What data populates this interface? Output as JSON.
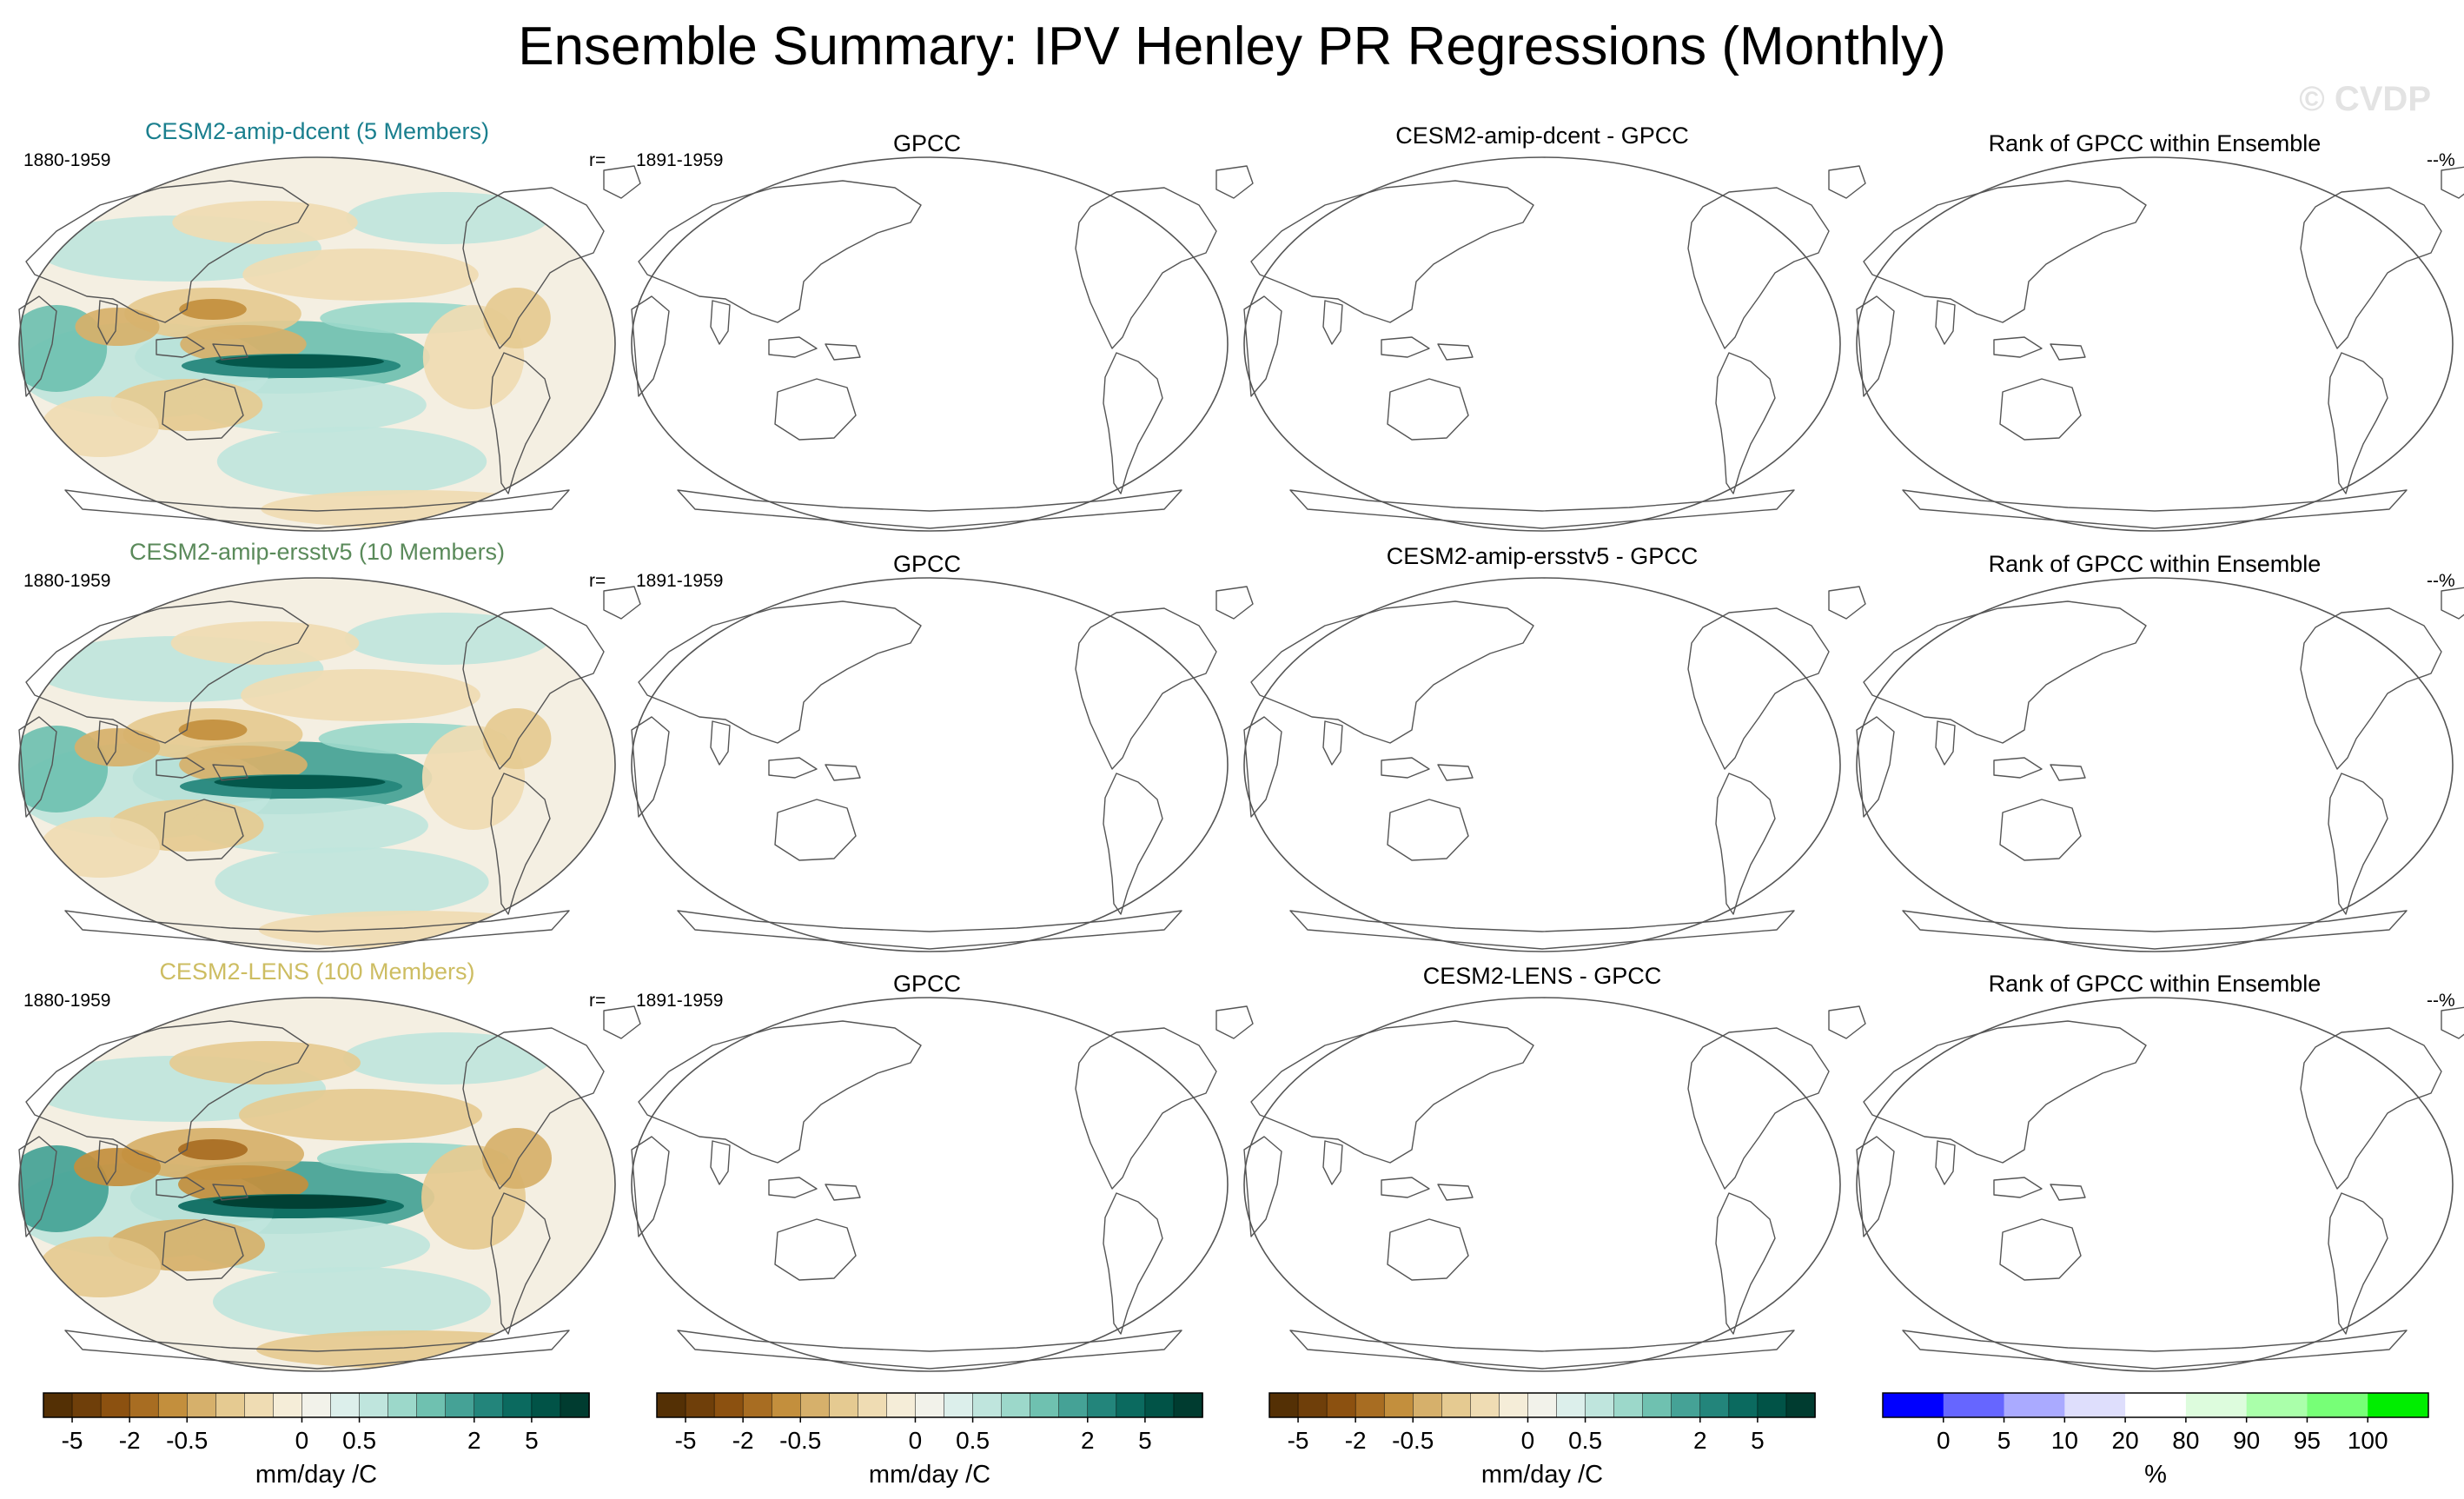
{
  "figure": {
    "title": "Ensemble Summary: IPV Henley PR Regressions (Monthly)",
    "watermark": "© CVDP"
  },
  "colors": {
    "brbg": [
      "#543005",
      "#6f3f0a",
      "#8c5110",
      "#a86d22",
      "#c38f3d",
      "#d6b06b",
      "#e5ca91",
      "#efdcb3",
      "#f5edd8",
      "#f2f2ea",
      "#dcefeb",
      "#bfe5dd",
      "#9cd8ca",
      "#6fc1b0",
      "#45a296",
      "#23857b",
      "#0b6a5f",
      "#015347",
      "#003c30"
    ],
    "rank": [
      "#0000ff",
      "#6666ff",
      "#aaaaff",
      "#dedefc",
      "#ffffff",
      "#ddfcdd",
      "#aaffaa",
      "#77ff77",
      "#00ee00"
    ],
    "ensemble_title_colors": [
      "#1a7f8e",
      "#5a8a5a",
      "#cdbd62"
    ]
  },
  "chart_data": {
    "type": "heatmap",
    "rows": [
      {
        "ensemble": "CESM2-amip-dcent (5 Members)",
        "model_period": "1880-1959",
        "r_label": "r=",
        "obs_title": "GPCC",
        "obs_period": "1891-1959",
        "diff_title": "CESM2-amip-dcent - GPCC",
        "rank_title": "Rank of GPCC within Ensemble",
        "rank_value": "--%",
        "intensity": 0.8
      },
      {
        "ensemble": "CESM2-amip-ersstv5 (10 Members)",
        "model_period": "1880-1959",
        "r_label": "r=",
        "obs_title": "GPCC",
        "obs_period": "1891-1959",
        "diff_title": "CESM2-amip-ersstv5 - GPCC",
        "rank_title": "Rank of GPCC within Ensemble",
        "rank_value": "--%",
        "intensity": 0.9
      },
      {
        "ensemble": "CESM2-LENS (100 Members)",
        "model_period": "1880-1959",
        "r_label": "r=",
        "obs_title": "GPCC",
        "obs_period": "1891-1959",
        "diff_title": "CESM2-LENS - GPCC",
        "rank_title": "Rank of GPCC within Ensemble",
        "rank_value": "--%",
        "intensity": 1.0
      }
    ],
    "colorbars": [
      {
        "ticks": [
          "-5",
          "-2",
          "-0.5",
          "0",
          "0.5",
          "2",
          "5"
        ],
        "tick_index": [
          1,
          3,
          5,
          9,
          11,
          15,
          17
        ],
        "unit": "mm/day /C"
      },
      {
        "ticks": [
          "-5",
          "-2",
          "-0.5",
          "0",
          "0.5",
          "2",
          "5"
        ],
        "tick_index": [
          1,
          3,
          5,
          9,
          11,
          15,
          17
        ],
        "unit": "mm/day /C"
      },
      {
        "ticks": [
          "-5",
          "-2",
          "-0.5",
          "0",
          "0.5",
          "2",
          "5"
        ],
        "tick_index": [
          1,
          3,
          5,
          9,
          11,
          15,
          17
        ],
        "unit": "mm/day /C"
      },
      {
        "ticks": [
          "0",
          "5",
          "10",
          "20",
          "80",
          "90",
          "95",
          "100"
        ],
        "tick_index": [
          1,
          2,
          3,
          4,
          5,
          6,
          7,
          8
        ],
        "unit": "%"
      }
    ]
  }
}
